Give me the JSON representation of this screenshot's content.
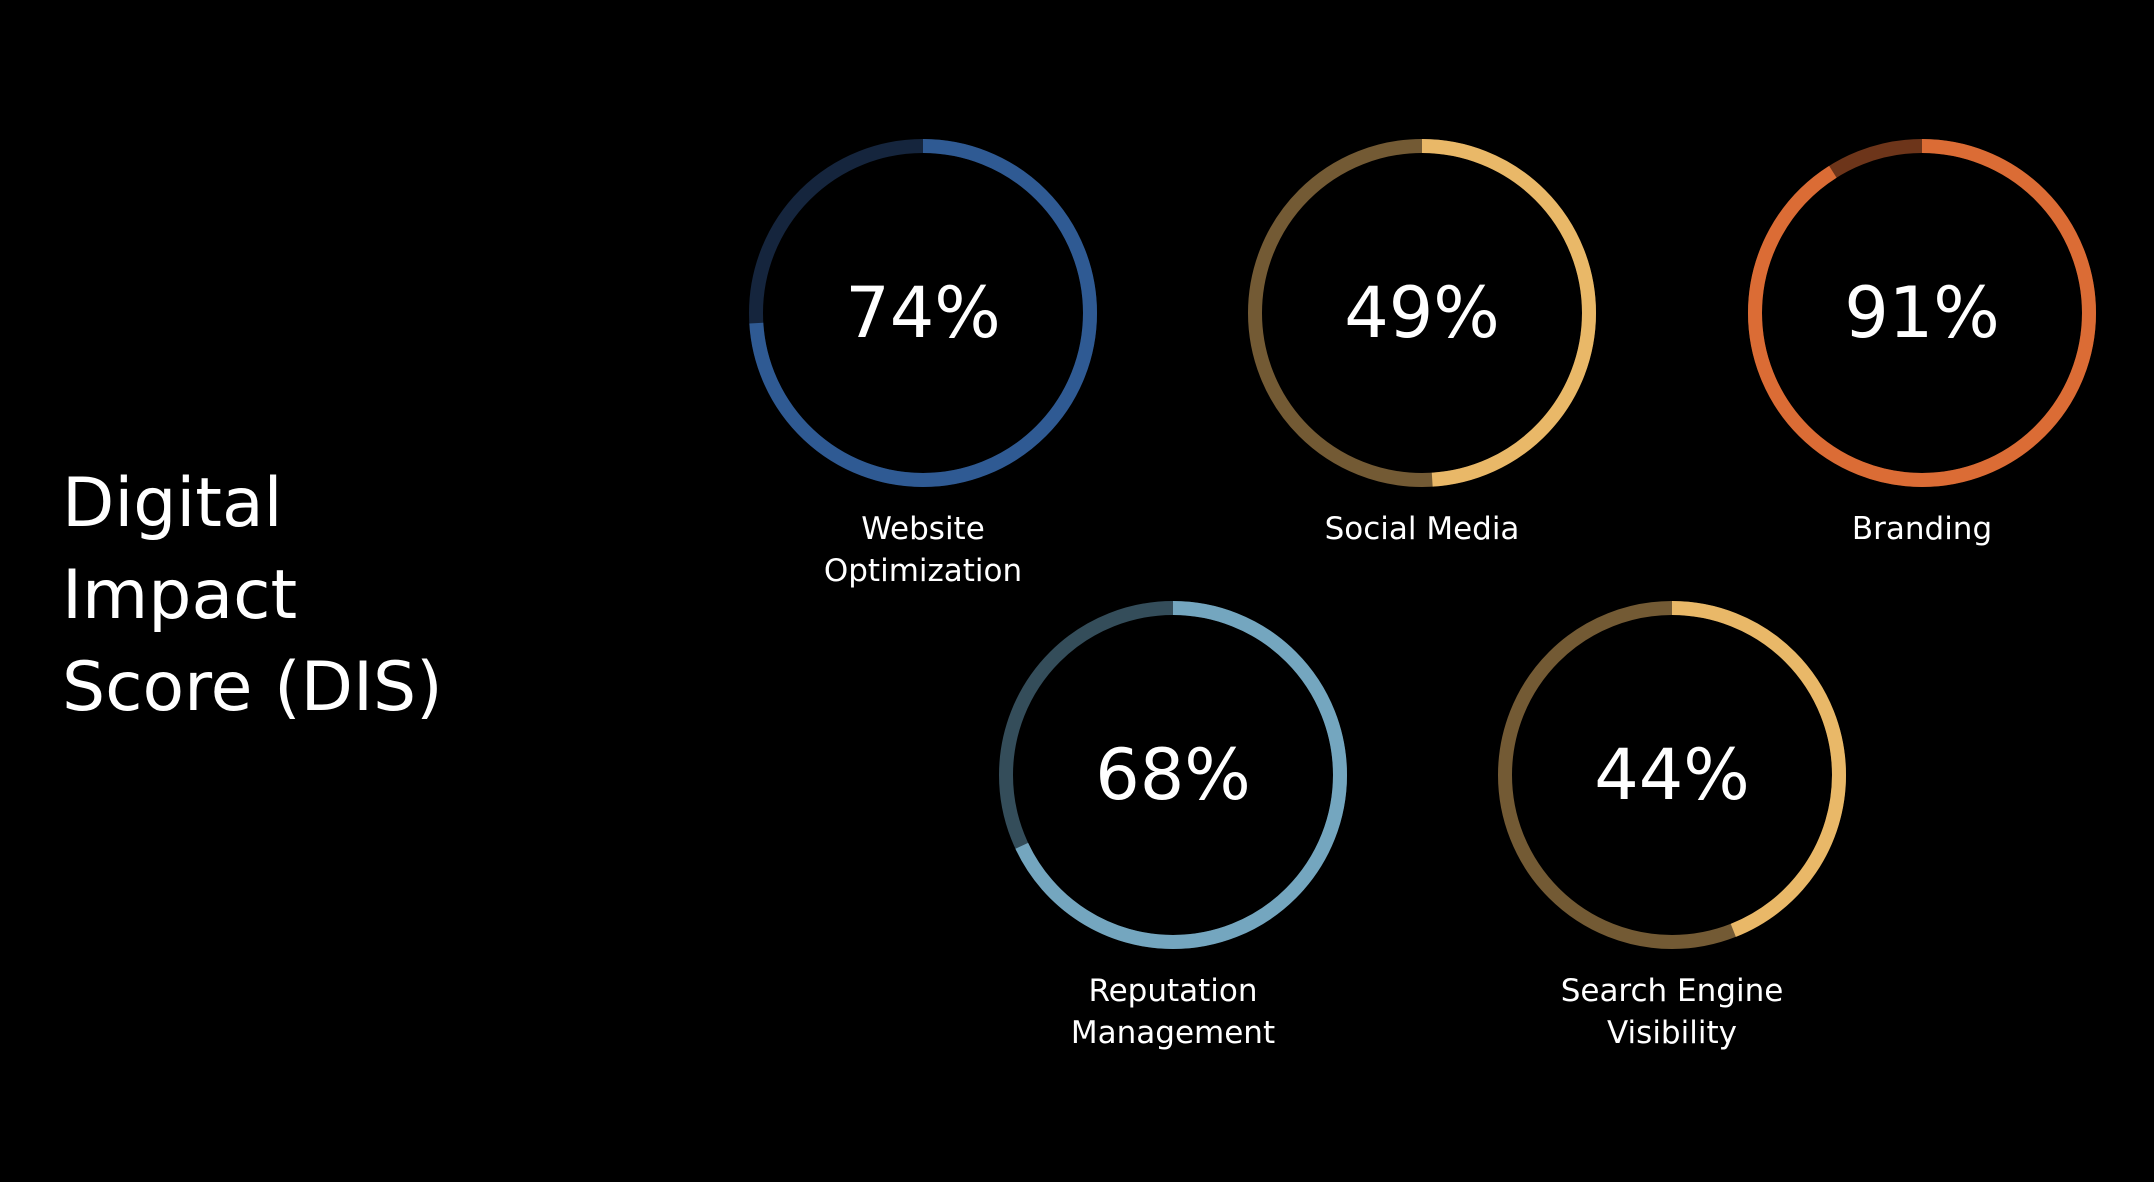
{
  "title_lines": [
    "Digital",
    "Impact",
    "Score (DIS)"
  ],
  "chart_data": {
    "type": "donut",
    "title": "Digital Impact Score (DIS)",
    "unit": "%",
    "max": 100,
    "items": [
      {
        "label_lines": [
          "Website",
          "Optimization"
        ],
        "value": 74,
        "display": "74%",
        "color": "#2f5a93",
        "track_color": "#15253d"
      },
      {
        "label_lines": [
          "Social Media"
        ],
        "value": 49,
        "display": "49%",
        "color": "#e9b868",
        "track_color": "#735a34"
      },
      {
        "label_lines": [
          "Branding"
        ],
        "value": 91,
        "display": "91%",
        "color": "#db6c35",
        "track_color": "#6d351a"
      },
      {
        "label_lines": [
          "Reputation",
          "Management"
        ],
        "value": 68,
        "display": "68%",
        "color": "#74a6bf",
        "track_color": "#344d5a"
      },
      {
        "label_lines": [
          "Search Engine",
          "Visibility"
        ],
        "value": 44,
        "display": "44%",
        "color": "#e9b868",
        "track_color": "#735a34"
      }
    ]
  }
}
